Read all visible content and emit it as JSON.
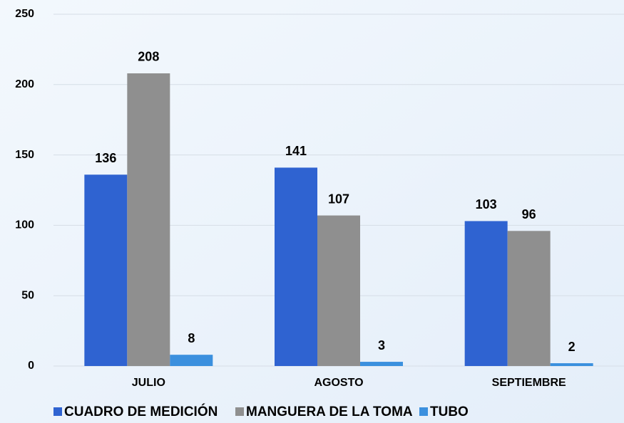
{
  "chart_data": {
    "type": "bar",
    "categories": [
      "JULIO",
      "AGOSTO",
      "SEPTIEMBRE"
    ],
    "series": [
      {
        "name": "CUADRO DE MEDICIÓN",
        "color": "#2f63d1",
        "values": [
          136,
          141,
          103
        ]
      },
      {
        "name": "MANGUERA DE LA TOMA",
        "color": "#8f8f8f",
        "values": [
          208,
          107,
          96
        ]
      },
      {
        "name": "TUBO",
        "color": "#3b90de",
        "values": [
          8,
          3,
          2
        ]
      }
    ],
    "ylim": [
      0,
      250
    ],
    "yticks": [
      0,
      50,
      100,
      150,
      200,
      250
    ],
    "grid": true,
    "legend": "bottom"
  }
}
